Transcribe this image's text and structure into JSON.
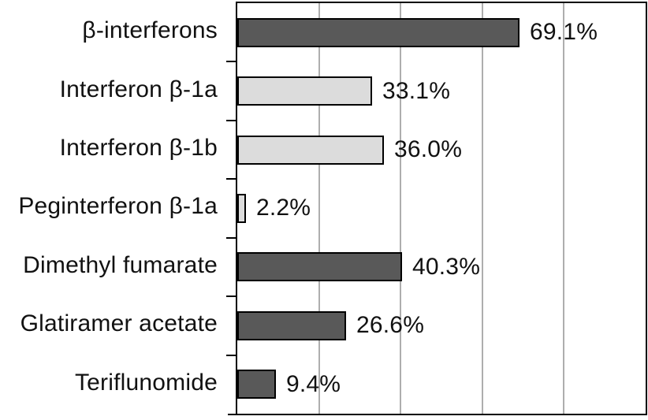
{
  "chart_data": {
    "type": "bar",
    "orientation": "horizontal",
    "title": "",
    "xlabel": "",
    "ylabel": "",
    "categories": [
      "β-interferons",
      "Interferon β-1a",
      "Interferon β-1b",
      "Peginterferon β-1a",
      "Dimethyl fumarate",
      "Glatiramer acetate",
      "Teriflunomide"
    ],
    "values": [
      69.1,
      33.1,
      36.0,
      2.2,
      40.3,
      26.6,
      9.4
    ],
    "value_labels": [
      "69.1%",
      "33.1%",
      "36.0%",
      "2.2%",
      "40.3%",
      "26.6%",
      "9.4%"
    ],
    "bar_styles": [
      "dark",
      "light",
      "light",
      "light",
      "dark",
      "dark",
      "dark"
    ],
    "xlim": [
      0,
      100
    ],
    "gridline_positions": [
      20,
      40,
      60,
      80
    ],
    "grid": true,
    "legend": false,
    "colors": {
      "dark": "#595959",
      "light": "#dcdcdc",
      "grid": "#aeaeae",
      "frame": "#000000",
      "text": "#111111",
      "background": "#ffffff"
    }
  }
}
